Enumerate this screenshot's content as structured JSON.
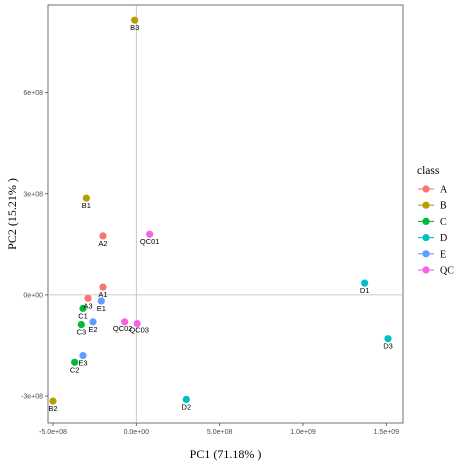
{
  "chart_data": {
    "type": "scatter",
    "title": "",
    "xlabel": "PC1 (71.18% )",
    "ylabel": "PC2 (15.21% )",
    "xlim": [
      -530000000,
      1600000000
    ],
    "ylim": [
      -380000000,
      860000000
    ],
    "x_ticks": [
      -500000000,
      0,
      500000000,
      1000000000,
      1500000000
    ],
    "x_tick_labels": [
      "-5.0e+08",
      "0.0e+00",
      "5.0e+08",
      "1.0e+09",
      "1.5e+09"
    ],
    "y_ticks": [
      -300000000,
      0,
      300000000,
      600000000
    ],
    "y_tick_labels": [
      "-3e+08",
      "0e+00",
      "3e+08",
      "6e+08"
    ],
    "reference_lines": {
      "x": 0,
      "y": 0
    },
    "legend": {
      "title": "class",
      "placement": "right",
      "entries": [
        {
          "label": "A",
          "color": "#F8766D"
        },
        {
          "label": "B",
          "color": "#B79F00"
        },
        {
          "label": "C",
          "color": "#00BA38"
        },
        {
          "label": "D",
          "color": "#00BFC4"
        },
        {
          "label": "E",
          "color": "#619CFF"
        },
        {
          "label": "QC",
          "color": "#F564E3"
        }
      ]
    },
    "points": [
      {
        "label": "B3",
        "class": "B",
        "x": -10000000,
        "y": 815000000
      },
      {
        "label": "B1",
        "class": "B",
        "x": -300000000,
        "y": 287000000
      },
      {
        "label": "B2",
        "class": "B",
        "x": -500000000,
        "y": -315000000
      },
      {
        "label": "A2",
        "class": "A",
        "x": -200000000,
        "y": 175000000
      },
      {
        "label": "A1",
        "class": "A",
        "x": -200000000,
        "y": 23000000
      },
      {
        "label": "A3",
        "class": "A",
        "x": -290000000,
        "y": -10000000
      },
      {
        "label": "QC01",
        "class": "QC",
        "x": 80000000,
        "y": 180000000
      },
      {
        "label": "QC02",
        "class": "QC",
        "x": -70000000,
        "y": -80000000
      },
      {
        "label": "QC03",
        "class": "QC",
        "x": 5000000,
        "y": -85000000
      },
      {
        "label": "E1",
        "class": "E",
        "x": -210000000,
        "y": -18000000
      },
      {
        "label": "E2",
        "class": "E",
        "x": -260000000,
        "y": -80000000
      },
      {
        "label": "E3",
        "class": "E",
        "x": -320000000,
        "y": -180000000
      },
      {
        "label": "C1",
        "class": "C",
        "x": -320000000,
        "y": -40000000
      },
      {
        "label": "C3",
        "class": "C",
        "x": -330000000,
        "y": -88000000
      },
      {
        "label": "C2",
        "class": "C",
        "x": -370000000,
        "y": -200000000
      },
      {
        "label": "D1",
        "class": "D",
        "x": 1370000000,
        "y": 35000000
      },
      {
        "label": "D3",
        "class": "D",
        "x": 1510000000,
        "y": -130000000
      },
      {
        "label": "D2",
        "class": "D",
        "x": 300000000,
        "y": -310000000
      }
    ]
  }
}
